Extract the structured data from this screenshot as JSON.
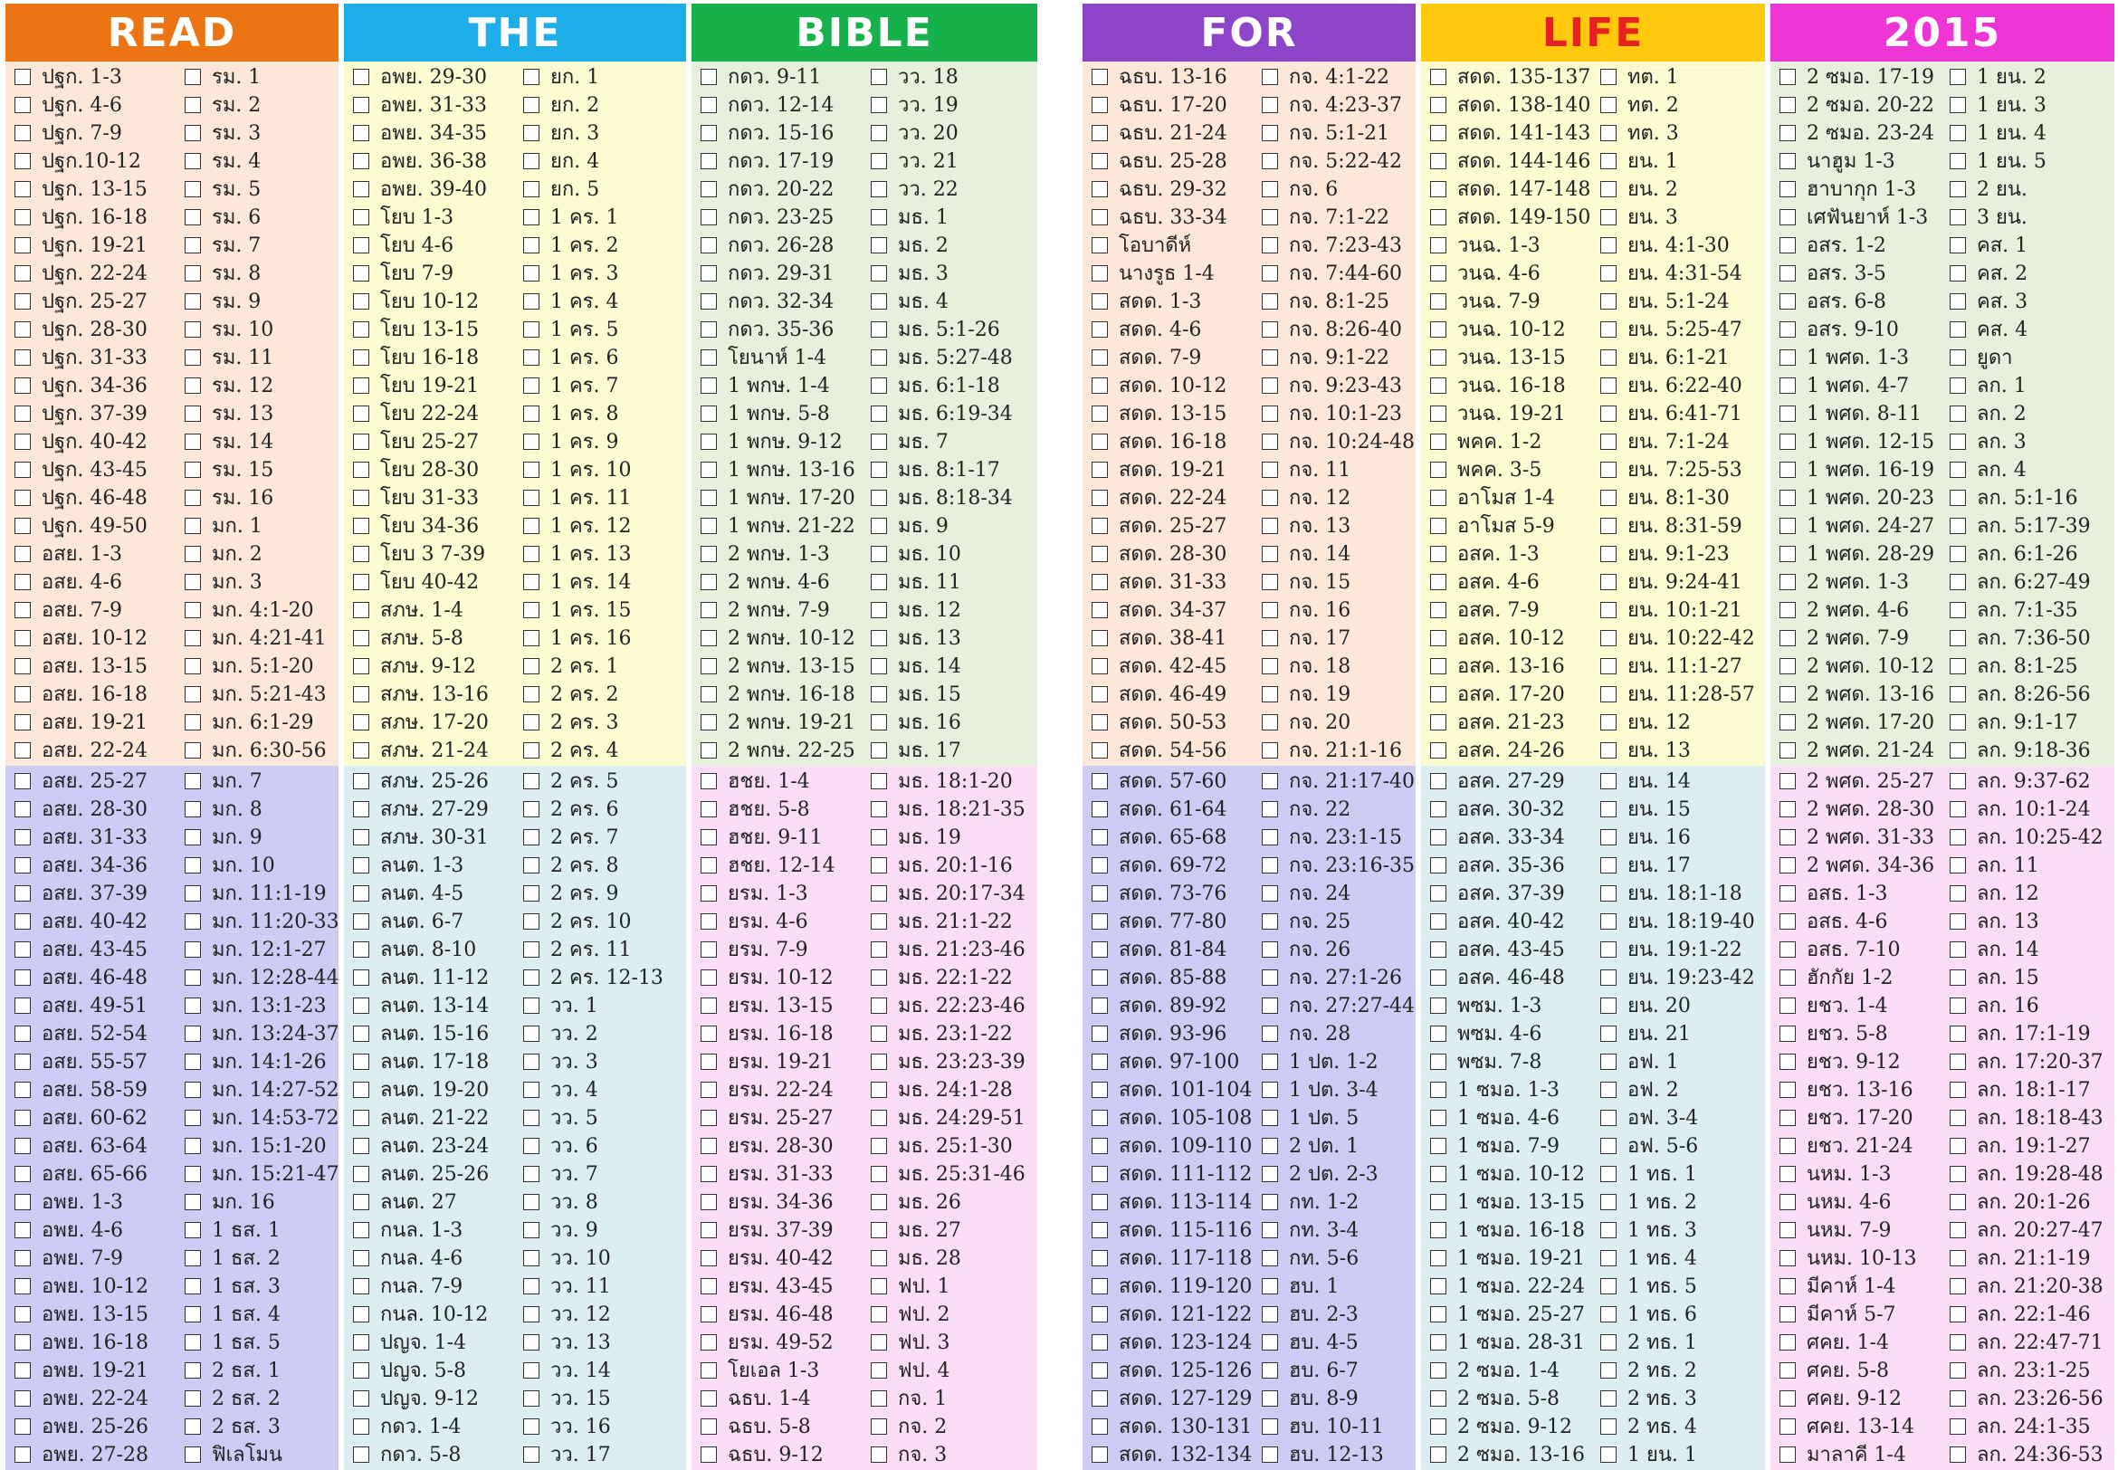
{
  "header": [
    {
      "text": "READ",
      "color": "#EC7412"
    },
    {
      "text": "THE",
      "color": "#1DAEEA"
    },
    {
      "text": "BIBLE",
      "color": "#16B14A"
    },
    {
      "text": "FOR",
      "color": "#8E44C8"
    },
    {
      "text": "LIFE",
      "color": "#FFC90E",
      "text_color": "#E82020"
    },
    {
      "text": "2015",
      "color": "#F035D6"
    }
  ],
  "block_colors": [
    [
      "#FDE7D8",
      "#FDFBD2",
      "#E7F0DC",
      "#FDE7D8",
      "#FDFBD2",
      "#E7F0DC"
    ],
    [
      "#CCCCF5",
      "#DDEEF2",
      "#FCDDF7",
      "#CCCCF5",
      "#DDEEF2",
      "#FCDDF7"
    ]
  ],
  "sections": [
    [
      [
        [
          "ปฐก. 1-3",
          "ปฐก. 4-6",
          "ปฐก. 7-9",
          "ปฐก.10-12",
          "ปฐก. 13-15",
          "ปฐก. 16-18",
          "ปฐก. 19-21",
          "ปฐก. 22-24",
          "ปฐก. 25-27",
          "ปฐก. 28-30",
          "ปฐก. 31-33",
          "ปฐก. 34-36",
          "ปฐก. 37-39",
          "ปฐก. 40-42",
          "ปฐก. 43-45",
          "ปฐก. 46-48",
          "ปฐก. 49-50",
          "อสย. 1-3",
          "อสย. 4-6",
          "อสย. 7-9",
          "อสย. 10-12",
          "อสย. 13-15",
          "อสย. 16-18",
          "อสย. 19-21",
          "อสย. 22-24"
        ],
        [
          "รม. 1",
          "รม. 2",
          "รม. 3",
          "รม. 4",
          "รม. 5",
          "รม. 6",
          "รม. 7",
          "รม. 8",
          "รม. 9",
          "รม. 10",
          "รม. 11",
          "รม. 12",
          "รม. 13",
          "รม. 14",
          "รม. 15",
          "รม. 16",
          "มก. 1",
          "มก. 2",
          "มก. 3",
          "มก. 4:1-20",
          "มก. 4:21-41",
          "มก. 5:1-20",
          "มก. 5:21-43",
          "มก. 6:1-29",
          "มก. 6:30-56"
        ]
      ],
      [
        [
          "อพย. 29-30",
          "อพย. 31-33",
          "อพย. 34-35",
          "อพย. 36-38",
          "อพย. 39-40",
          "โยบ 1-3",
          "โยบ 4-6",
          "โยบ 7-9",
          "โยบ 10-12",
          "โยบ 13-15",
          "โยบ 16-18",
          "โยบ 19-21",
          "โยบ 22-24",
          "โยบ 25-27",
          "โยบ 28-30",
          "โยบ 31-33",
          "โยบ 34-36",
          "โยบ 3 7-39",
          "โยบ 40-42",
          "สภษ. 1-4",
          "สภษ. 5-8",
          "สภษ. 9-12",
          "สภษ. 13-16",
          "สภษ. 17-20",
          "สภษ. 21-24"
        ],
        [
          "ยก. 1",
          "ยก. 2",
          "ยก. 3",
          "ยก. 4",
          "ยก. 5",
          "1 คร. 1",
          "1 คร. 2",
          "1 คร. 3",
          "1 คร. 4",
          "1 คร. 5",
          "1 คร. 6",
          "1 คร. 7",
          "1 คร. 8",
          "1 คร. 9",
          "1 คร. 10",
          "1 คร. 11",
          "1 คร. 12",
          "1 คร. 13",
          "1 คร. 14",
          "1 คร. 15",
          "1 คร. 16",
          "2 คร. 1",
          "2 คร. 2",
          "2 คร. 3",
          "2 คร. 4"
        ]
      ],
      [
        [
          "กดว. 9-11",
          "กดว. 12-14",
          "กดว. 15-16",
          "กดว. 17-19",
          "กดว. 20-22",
          "กดว. 23-25",
          "กดว. 26-28",
          "กดว.  29-31",
          "กดว. 32-34",
          "กดว. 35-36",
          "โยนาห์ 1-4",
          "1 พกษ. 1-4",
          "1 พกษ. 5-8",
          "1 พกษ. 9-12",
          "1 พกษ. 13-16",
          "1 พกษ. 17-20",
          "1 พกษ. 21-22",
          "2 พกษ. 1-3",
          "2 พกษ. 4-6",
          "2 พกษ. 7-9",
          "2 พกษ. 10-12",
          "2 พกษ. 13-15",
          "2 พกษ. 16-18",
          "2 พกษ. 19-21",
          "2 พกษ. 22-25"
        ],
        [
          "วว. 18",
          "วว. 19",
          "วว. 20",
          "วว. 21",
          "วว. 22",
          "มธ. 1",
          "มธ. 2",
          "มธ. 3",
          "มธ. 4",
          "มธ. 5:1-26",
          "มธ. 5:27-48",
          "มธ. 6:1-18",
          "มธ. 6:19-34",
          "มธ. 7",
          "มธ. 8:1-17",
          "มธ. 8:18-34",
          "มธ. 9",
          "มธ. 10",
          "มธ. 11",
          "มธ. 12",
          "มธ. 13",
          "มธ. 14",
          "มธ. 15",
          "มธ. 16",
          "มธ. 17"
        ]
      ],
      [
        [
          "ฉธบ. 13-16",
          "ฉธบ. 17-20",
          "ฉธบ. 21-24",
          "ฉธบ. 25-28",
          "ฉธบ. 29-32",
          "ฉธบ. 33-34",
          "โอบาดีห์",
          "นางรูธ 1-4",
          "สดด. 1-3",
          "สดด. 4-6",
          "สดด. 7-9",
          "สดด. 10-12",
          "สดด. 13-15",
          "สดด. 16-18",
          "สดด. 19-21",
          "สดด. 22-24",
          "สดด. 25-27",
          "สดด. 28-30",
          "สดด. 31-33",
          "สดด. 34-37",
          "สดด. 38-41",
          "สดด. 42-45",
          "สดด. 46-49",
          "สดด. 50-53",
          "สดด. 54-56"
        ],
        [
          "กจ. 4:1-22",
          "กจ. 4:23-37",
          "กจ. 5:1-21",
          "กจ. 5:22-42",
          "กจ. 6",
          "กจ. 7:1-22",
          "กจ. 7:23-43",
          "กจ. 7:44-60",
          "กจ. 8:1-25",
          "กจ. 8:26-40",
          "กจ. 9:1-22",
          "กจ. 9:23-43",
          "กจ. 10:1-23",
          "กจ. 10:24-48",
          "กจ. 11",
          "กจ. 12",
          "กจ. 13",
          "กจ. 14",
          "กจ. 15",
          "กจ. 16",
          "กจ. 17",
          "กจ. 18",
          "กจ. 19",
          "กจ. 20",
          "กจ. 21:1-16"
        ]
      ],
      [
        [
          "สดด. 135-137",
          "สดด. 138-140",
          "สดด. 141-143",
          "สดด. 144-146",
          "สดด. 147-148",
          "สดด. 149-150",
          "วนฉ. 1-3",
          "วนฉ. 4-6",
          "วนฉ. 7-9",
          "วนฉ. 10-12",
          "วนฉ. 13-15",
          "วนฉ. 16-18",
          "วนฉ. 19-21",
          "พคค. 1-2",
          "พคค. 3-5",
          "อาโมส 1-4",
          "อาโมส 5-9",
          "อสค. 1-3",
          "อสค. 4-6",
          "อสค. 7-9",
          "อสค. 10-12",
          "อสค. 13-16",
          "อสค. 17-20",
          "อสค. 21-23",
          "อสค. 24-26"
        ],
        [
          "ทต. 1",
          "ทต. 2",
          "ทต. 3",
          "ยน. 1",
          "ยน. 2",
          "ยน. 3",
          "ยน. 4:1-30",
          "ยน. 4:31-54",
          "ยน. 5:1-24",
          "ยน. 5:25-47",
          "ยน. 6:1-21",
          "ยน. 6:22-40",
          "ยน. 6:41-71",
          "ยน. 7:1-24",
          "ยน. 7:25-53",
          "ยน. 8:1-30",
          "ยน. 8:31-59",
          "ยน. 9:1-23",
          "ยน. 9:24-41",
          "ยน. 10:1-21",
          "ยน. 10:22-42",
          "ยน. 11:1-27",
          "ยน. 11:28-57",
          "ยน. 12",
          "ยน. 13"
        ]
      ],
      [
        [
          "2 ซมอ. 17-19",
          "2 ซมอ. 20-22",
          "2 ซมอ. 23-24",
          "นาฮูม 1-3",
          "ฮาบากุก 1-3",
          "เศฟันยาห์ 1-3",
          "อสร. 1-2",
          "อสร. 3-5",
          "อสร. 6-8",
          "อสร. 9-10",
          "1 พศด. 1-3",
          "1 พศด. 4-7",
          "1 พศด. 8-11",
          "1 พศด. 12-15",
          "1 พศด. 16-19",
          "1 พศด. 20-23",
          "1 พศด. 24-27",
          "1 พศด. 28-29",
          "2 พศด. 1-3",
          "2 พศด. 4-6",
          "2 พศด. 7-9",
          "2 พศด. 10-12",
          "2 พศด. 13-16",
          "2 พศด. 17-20",
          "2 พศด. 21-24"
        ],
        [
          "1 ยน. 2",
          "1 ยน. 3",
          "1 ยน. 4",
          "1 ยน. 5",
          "2 ยน.",
          "3 ยน.",
          "คส. 1",
          "คส. 2",
          "คส. 3",
          "คส. 4",
          "ยูดา",
          "ลก. 1",
          "ลก. 2",
          "ลก. 3",
          "ลก. 4",
          "ลก. 5:1-16",
          "ลก. 5:17-39",
          "ลก. 6:1-26",
          "ลก. 6:27-49",
          "ลก. 7:1-35",
          "ลก. 7:36-50",
          "ลก. 8:1-25",
          "ลก. 8:26-56",
          "ลก. 9:1-17",
          "ลก. 9:18-36"
        ]
      ]
    ],
    [
      [
        [
          "อสย. 25-27",
          "อสย. 28-30",
          "อสย. 31-33",
          "อสย. 34-36",
          "อสย. 37-39",
          "อสย. 40-42",
          "อสย. 43-45",
          "อสย. 46-48",
          "อสย. 49-51",
          "อสย. 52-54",
          "อสย. 55-57",
          "อสย. 58-59",
          "อสย. 60-62",
          "อสย. 63-64",
          "อสย. 65-66",
          "อพย. 1-3",
          "อพย. 4-6",
          "อพย. 7-9",
          "อพย. 10-12",
          "อพย. 13-15",
          "อพย. 16-18",
          "อพย. 19-21",
          "อพย. 22-24",
          "อพย. 25-26",
          "อพย. 27-28"
        ],
        [
          "มก. 7",
          "มก. 8",
          "มก. 9",
          "มก. 10",
          "มก. 11:1-19",
          "มก. 11:20-33",
          "มก. 12:1-27",
          "มก. 12:28-44",
          "มก. 13:1-23",
          "มก. 13:24-37",
          "มก. 14:1-26",
          "มก. 14:27-52",
          "มก. 14:53-72",
          "มก. 15:1-20",
          "มก. 15:21-47",
          "มก. 16",
          "1 ธส. 1",
          "1 ธส. 2",
          "1 ธส. 3",
          "1 ธส. 4",
          "1 ธส. 5",
          "2 ธส. 1",
          "2 ธส. 2",
          "2 ธส. 3",
          "ฟิเลโมน"
        ]
      ],
      [
        [
          "สภษ. 25-26",
          "สภษ. 27-29",
          "สภษ. 30-31",
          "ลนต. 1-3",
          "ลนต. 4-5",
          "ลนต. 6-7",
          "ลนต. 8-10",
          "ลนต. 11-12",
          "ลนต. 13-14",
          "ลนต. 15-16",
          "ลนต. 17-18",
          "ลนต. 19-20",
          "ลนต. 21-22",
          "ลนต. 23-24",
          "ลนต. 25-26",
          "ลนต. 27",
          "กนล. 1-3",
          "กนล. 4-6",
          "กนล. 7-9",
          "กนล. 10-12",
          "ปญจ. 1-4",
          "ปญจ. 5-8",
          "ปญจ. 9-12",
          "กดว. 1-4",
          "กดว. 5-8"
        ],
        [
          "2 คร. 5",
          "2 คร. 6",
          "2 คร. 7",
          "2 คร. 8",
          "2 คร. 9",
          "2 คร. 10",
          "2 คร. 11",
          "2 คร. 12-13",
          "วว. 1",
          "วว. 2",
          "วว. 3",
          "วว. 4",
          "วว. 5",
          "วว. 6",
          "วว. 7",
          "วว. 8",
          "วว. 9",
          "วว. 10",
          "วว. 11",
          "วว. 12",
          "วว. 13",
          "วว. 14",
          "วว. 15",
          "วว. 16",
          "วว. 17"
        ]
      ],
      [
        [
          "ฮชย. 1-4",
          "ฮชย. 5-8",
          "ฮชย. 9-11",
          "ฮชย. 12-14",
          "ยรม. 1-3",
          "ยรม. 4-6",
          "ยรม. 7-9",
          "ยรม. 10-12",
          "ยรม. 13-15",
          "ยรม. 16-18",
          "ยรม. 19-21",
          "ยรม. 22-24",
          "ยรม. 25-27",
          "ยรม. 28-30",
          "ยรม. 31-33",
          "ยรม. 34-36",
          "ยรม. 37-39",
          "ยรม. 40-42",
          "ยรม. 43-45",
          "ยรม. 46-48",
          "ยรม. 49-52",
          "โยเอล 1-3",
          "ฉธบ. 1-4",
          "ฉธบ. 5-8",
          "ฉธบ. 9-12"
        ],
        [
          "มธ. 18:1-20",
          "มธ. 18:21-35",
          "มธ. 19",
          "มธ. 20:1-16",
          "มธ. 20:17-34",
          "มธ. 21:1-22",
          "มธ. 21:23-46",
          "มธ. 22:1-22",
          "มธ. 22:23-46",
          "มธ. 23:1-22",
          "มธ. 23:23-39",
          "มธ. 24:1-28",
          "มธ. 24:29-51",
          "มธ. 25:1-30",
          "มธ. 25:31-46",
          "มธ. 26",
          "มธ. 27",
          "มธ. 28",
          "ฟป. 1",
          "ฟป. 2",
          "ฟป. 3",
          "ฟป. 4",
          "กจ. 1",
          "กจ. 2",
          "กจ. 3"
        ]
      ],
      [
        [
          "สดด. 57-60",
          "สดด. 61-64",
          "สดด. 65-68",
          "สดด. 69-72",
          "สดด. 73-76",
          "สดด. 77-80",
          "สดด. 81-84",
          "สดด. 85-88",
          "สดด. 89-92",
          "สดด. 93-96",
          "สดด. 97-100",
          "สดด. 101-104",
          "สดด. 105-108",
          "สดด. 109-110",
          "สดด. 111-112",
          "สดด. 113-114",
          "สดด. 115-116",
          "สดด. 117-118",
          "สดด. 119-120",
          "สดด. 121-122",
          "สดด. 123-124",
          "สดด. 125-126",
          "สดด. 127-129",
          "สดด. 130-131",
          "สดด. 132-134"
        ],
        [
          "กจ. 21:17-40",
          "กจ. 22",
          "กจ. 23:1-15",
          "กจ. 23:16-35",
          "กจ. 24",
          "กจ. 25",
          "กจ. 26",
          "กจ. 27:1-26",
          "กจ. 27:27-44",
          "กจ. 28",
          "1 ปต. 1-2",
          "1 ปต. 3-4",
          "1 ปต. 5",
          "2 ปต. 1",
          "2 ปต. 2-3",
          "กท. 1-2",
          "กท. 3-4",
          "กท. 5-6",
          "ฮบ. 1",
          "ฮบ. 2-3",
          "ฮบ. 4-5",
          "ฮบ. 6-7",
          "ฮบ. 8-9",
          "ฮบ. 10-11",
          "ฮบ. 12-13"
        ]
      ],
      [
        [
          "อสค. 27-29",
          "อสค. 30-32",
          "อสค. 33-34",
          "อสค. 35-36",
          "อสค. 37-39",
          "อสค. 40-42",
          "อสค. 43-45",
          "อสค. 46-48",
          "พซม. 1-3",
          "พซม. 4-6",
          "พซม. 7-8",
          "1 ซมอ. 1-3",
          "1 ซมอ. 4-6",
          "1 ซมอ. 7-9",
          "1 ซมอ. 10-12",
          "1 ซมอ. 13-15",
          "1 ซมอ. 16-18",
          "1 ซมอ. 19-21",
          "1 ซมอ. 22-24",
          "1 ซมอ. 25-27",
          "1 ซมอ. 28-31",
          "2 ซมอ. 1-4",
          "2 ซมอ. 5-8",
          "2 ซมอ. 9-12",
          "2 ซมอ. 13-16"
        ],
        [
          "ยน. 14",
          "ยน. 15",
          "ยน. 16",
          "ยน. 17",
          "ยน. 18:1-18",
          "ยน. 18:19-40",
          "ยน. 19:1-22",
          "ยน. 19:23-42",
          "ยน. 20",
          "ยน. 21",
          "อฟ. 1",
          "อฟ. 2",
          "อฟ. 3-4",
          "อฟ. 5-6",
          "1 ทธ. 1",
          "1 ทธ. 2",
          "1 ทธ. 3",
          "1 ทธ. 4",
          "1 ทธ. 5",
          "1 ทธ. 6",
          "2 ทธ. 1",
          "2 ทธ. 2",
          "2 ทธ. 3",
          "2 ทธ. 4",
          "1 ยน. 1"
        ]
      ],
      [
        [
          "2 พศด. 25-27",
          "2 พศด. 28-30",
          "2 พศด. 31-33",
          "2 พศด. 34-36",
          "อสธ. 1-3",
          "อสธ. 4-6",
          "อสธ. 7-10",
          "ฮักกัย 1-2",
          "ยชว. 1-4",
          "ยชว. 5-8",
          "ยชว. 9-12",
          "ยชว. 13-16",
          "ยชว. 17-20",
          "ยชว. 21-24",
          "นหม. 1-3",
          "นหม. 4-6",
          "นหม. 7-9",
          "นหม. 10-13",
          "มีคาห์ 1-4",
          "มีคาห์ 5-7",
          "ศคย. 1-4",
          "ศคย. 5-8",
          "ศคย. 9-12",
          "ศคย. 13-14",
          "มาลาคี 1-4"
        ],
        [
          "ลก. 9:37-62",
          "ลก. 10:1-24",
          "ลก. 10:25-42",
          "ลก. 11",
          "ลก. 12",
          "ลก. 13",
          "ลก. 14",
          "ลก. 15",
          "ลก. 16",
          "ลก. 17:1-19",
          "ลก. 17:20-37",
          "ลก. 18:1-17",
          "ลก. 18:18-43",
          "ลก. 19:1-27",
          "ลก. 19:28-48",
          "ลก. 20:1-26",
          "ลก. 20:27-47",
          "ลก. 21:1-19",
          "ลก. 21:20-38",
          "ลก. 22:1-46",
          "ลก. 22:47-71",
          "ลก. 23:1-25",
          "ลก. 23:26-56",
          "ลก. 24:1-35",
          "ลก. 24:36-53"
        ]
      ]
    ]
  ]
}
